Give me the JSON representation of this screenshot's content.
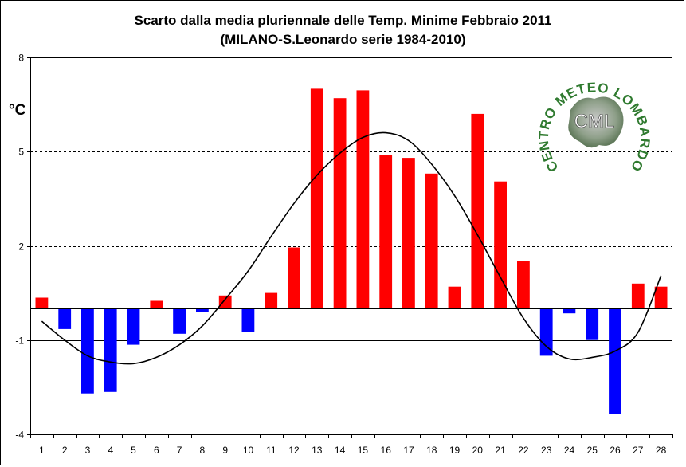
{
  "chart_data": {
    "type": "bar",
    "title": "Scarto dalla media pluriennale delle Temp. Minime Febbraio 2011",
    "subtitle": "(MILANO-S.Leonardo serie 1984-2010)",
    "ylabel": "°C",
    "xlabel": "",
    "ylim": [
      -4,
      8
    ],
    "yticks": [
      -4,
      -1,
      2,
      5,
      8
    ],
    "grid": "horizontal dashed at 2 and 5; solid at -1 and 8",
    "categories": [
      "1",
      "2",
      "3",
      "4",
      "5",
      "6",
      "7",
      "8",
      "9",
      "10",
      "11",
      "12",
      "13",
      "14",
      "15",
      "16",
      "17",
      "18",
      "19",
      "20",
      "21",
      "22",
      "23",
      "24",
      "25",
      "26",
      "27",
      "28"
    ],
    "values": [
      0.35,
      -0.65,
      -2.7,
      -2.65,
      -1.15,
      0.25,
      -0.8,
      -0.1,
      0.42,
      -0.75,
      0.5,
      1.95,
      7.0,
      6.7,
      6.95,
      4.9,
      4.8,
      4.3,
      0.7,
      6.2,
      4.05,
      1.52,
      -1.5,
      -0.15,
      -1.0,
      -3.35,
      0.8,
      0.7
    ],
    "positive_color": "#ff0000",
    "negative_color": "#0000ff",
    "trend_line": {
      "x": [
        1,
        2,
        3,
        4,
        5,
        6,
        7,
        8,
        9,
        10,
        11,
        12,
        13,
        14,
        15,
        16,
        17,
        18,
        19,
        20,
        21,
        22,
        23,
        24,
        25,
        26,
        27,
        28
      ],
      "y": [
        -0.4,
        -1.0,
        -1.5,
        -1.7,
        -1.75,
        -1.55,
        -1.15,
        -0.55,
        0.3,
        1.2,
        2.3,
        3.35,
        4.25,
        4.95,
        5.45,
        5.6,
        5.35,
        4.6,
        3.6,
        2.35,
        1.0,
        -0.3,
        -1.2,
        -1.6,
        -1.55,
        -1.35,
        -0.75,
        1.05
      ],
      "color": "#000000"
    }
  },
  "logo": {
    "arc_text": "CENTRO METEO LOMBARDO",
    "center_text": "CML"
  }
}
